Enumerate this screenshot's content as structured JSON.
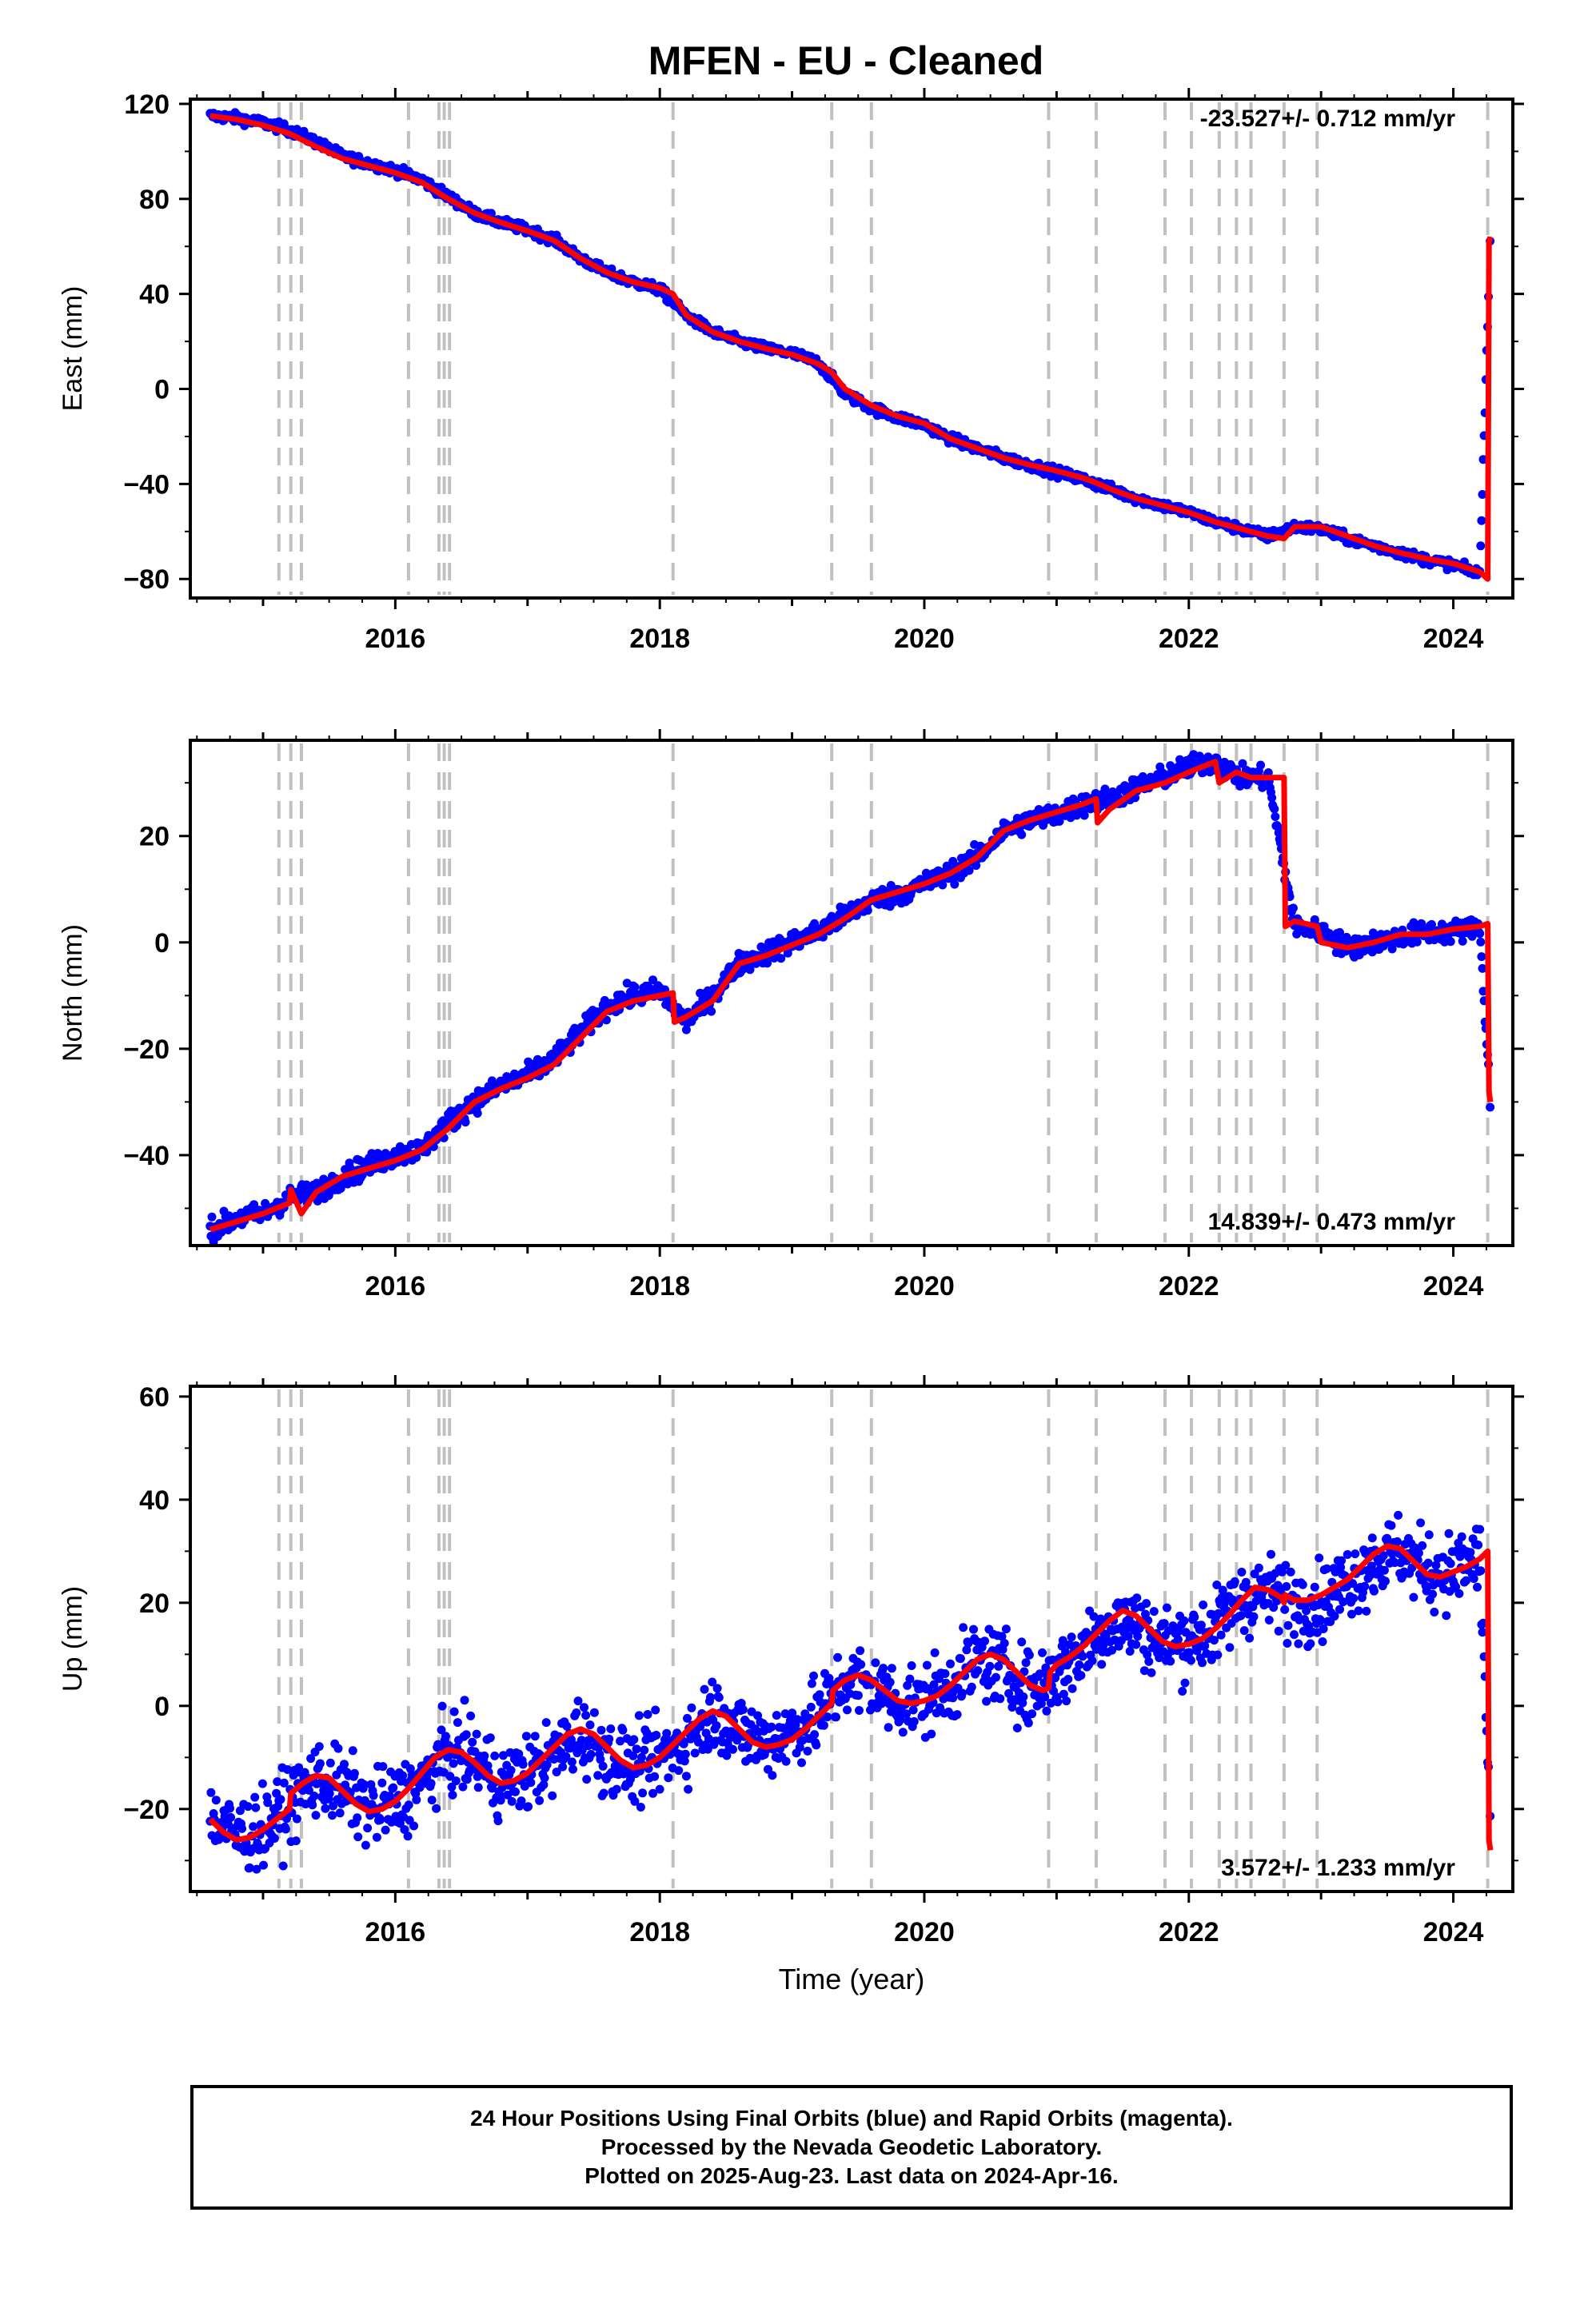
{
  "title": "MFEN  - EU - Cleaned",
  "footer": {
    "line1": "24 Hour Positions Using Final Orbits (blue) and Rapid Orbits (magenta).",
    "line2": "Processed by the Nevada Geodetic Laboratory.",
    "line3": "Plotted on 2025-Aug-23. Last data on 2024-Apr-16."
  },
  "colors": {
    "points": "#0000ff",
    "fit": "#ff0000",
    "steps": "#c0c0c0",
    "frame": "#000000"
  },
  "chart_data": [
    {
      "type": "scatter",
      "panel": "east",
      "ylabel": "East (mm)",
      "xlabel": "",
      "xlim": [
        2014.45,
        2024.45
      ],
      "ylim": [
        -88,
        122
      ],
      "yticks": [
        120,
        80,
        40,
        0,
        -40,
        -80
      ],
      "xticks": [
        2016,
        2018,
        2020,
        2022,
        2024
      ],
      "rate_label": "-23.527+/- 0.712 mm/yr",
      "rate_position": "top-right",
      "step_epochs": [
        2015.12,
        2015.21,
        2015.29,
        2016.1,
        2016.33,
        2016.37,
        2016.41,
        2018.1,
        2019.3,
        2019.6,
        2020.94,
        2021.3,
        2021.82,
        2022.02,
        2022.23,
        2022.36,
        2022.47,
        2022.72,
        2022.97,
        2024.26
      ],
      "series": [
        {
          "name": "24 Hour Positions",
          "kind": "points",
          "x": [
            2014.6,
            2014.8,
            2015.0,
            2015.2,
            2015.4,
            2015.6,
            2015.8,
            2016.0,
            2016.2,
            2016.4,
            2016.6,
            2016.8,
            2017.0,
            2017.2,
            2017.4,
            2017.6,
            2017.8,
            2018.0,
            2018.2,
            2018.4,
            2018.6,
            2018.8,
            2019.0,
            2019.2,
            2019.4,
            2019.6,
            2019.8,
            2020.0,
            2020.2,
            2020.4,
            2020.6,
            2020.8,
            2021.0,
            2021.2,
            2021.4,
            2021.6,
            2021.8,
            2022.0,
            2022.2,
            2022.4,
            2022.6,
            2022.8,
            2023.0,
            2023.2,
            2023.4,
            2023.6,
            2023.8,
            2024.0,
            2024.2,
            2024.28
          ],
          "y": [
            115,
            114,
            112,
            109,
            104,
            98,
            95,
            92,
            88,
            81,
            74,
            70,
            67,
            63,
            55,
            49,
            45,
            42,
            31,
            24,
            20,
            17,
            15,
            11,
            -2,
            -8,
            -12,
            -15,
            -21,
            -25,
            -29,
            -32,
            -35,
            -38,
            -42,
            -46,
            -49,
            -52,
            -56,
            -59,
            -62,
            -58,
            -59,
            -63,
            -66,
            -69,
            -72,
            -74,
            -78,
            64
          ]
        },
        {
          "name": "Model fit",
          "kind": "line",
          "x": [
            2014.6,
            2014.8,
            2015.0,
            2015.2,
            2015.4,
            2015.6,
            2015.8,
            2016.0,
            2016.2,
            2016.4,
            2016.6,
            2016.8,
            2017.0,
            2017.2,
            2017.4,
            2017.6,
            2017.8,
            2018.0,
            2018.1,
            2018.2,
            2018.4,
            2018.6,
            2018.8,
            2019.0,
            2019.2,
            2019.3,
            2019.4,
            2019.6,
            2019.8,
            2020.0,
            2020.2,
            2020.4,
            2020.6,
            2020.8,
            2021.0,
            2021.2,
            2021.3,
            2021.4,
            2021.6,
            2021.8,
            2022.0,
            2022.2,
            2022.4,
            2022.6,
            2022.72,
            2022.8,
            2023.0,
            2023.2,
            2023.4,
            2023.6,
            2023.8,
            2024.0,
            2024.2,
            2024.26,
            2024.27,
            2024.28
          ],
          "y": [
            115,
            113.5,
            111,
            107.5,
            102,
            97,
            94,
            91,
            87,
            80,
            74,
            70,
            66.5,
            62.5,
            55,
            49,
            45,
            42.5,
            40,
            31,
            24,
            20,
            17,
            14.5,
            10.5,
            7,
            0,
            -7,
            -11.5,
            -14.5,
            -21,
            -25,
            -29,
            -32,
            -34.5,
            -37.5,
            -39.5,
            -42,
            -46,
            -49,
            -52,
            -56,
            -59,
            -62,
            -63,
            -58,
            -58,
            -62,
            -66,
            -69,
            -71.5,
            -73.5,
            -77,
            -80,
            62,
            64
          ]
        }
      ]
    },
    {
      "type": "scatter",
      "panel": "north",
      "ylabel": "North (mm)",
      "xlabel": "",
      "xlim": [
        2014.45,
        2024.45
      ],
      "ylim": [
        -57,
        38
      ],
      "yticks": [
        20,
        0,
        -20,
        -40
      ],
      "xticks": [
        2016,
        2018,
        2020,
        2022,
        2024
      ],
      "rate_label": "14.839+/- 0.473 mm/yr",
      "rate_position": "bottom-right",
      "step_epochs": [
        2015.12,
        2015.21,
        2015.29,
        2016.1,
        2016.33,
        2016.37,
        2016.41,
        2018.1,
        2019.3,
        2019.6,
        2020.94,
        2021.3,
        2021.82,
        2022.02,
        2022.23,
        2022.36,
        2022.47,
        2022.72,
        2022.97,
        2024.26
      ],
      "series": [
        {
          "name": "24 Hour Positions",
          "kind": "points",
          "x": [
            2014.6,
            2014.8,
            2015.0,
            2015.2,
            2015.4,
            2015.6,
            2015.8,
            2016.0,
            2016.2,
            2016.4,
            2016.6,
            2016.8,
            2017.0,
            2017.2,
            2017.4,
            2017.6,
            2017.8,
            2018.0,
            2018.2,
            2018.4,
            2018.6,
            2018.8,
            2019.0,
            2019.2,
            2019.4,
            2019.6,
            2019.8,
            2020.0,
            2020.2,
            2020.4,
            2020.6,
            2020.8,
            2021.0,
            2021.2,
            2021.4,
            2021.6,
            2021.8,
            2022.0,
            2022.2,
            2022.4,
            2022.6,
            2022.8,
            2023.0,
            2023.2,
            2023.4,
            2023.6,
            2023.8,
            2024.0,
            2024.2,
            2024.28
          ],
          "y": [
            -54,
            -52,
            -51,
            -48,
            -47,
            -44,
            -42,
            -40,
            -39,
            -34,
            -30,
            -27,
            -25,
            -22,
            -17,
            -12,
            -10,
            -9,
            -15,
            -10,
            -4,
            -2,
            0,
            2,
            5,
            8,
            9,
            11,
            13,
            16,
            21,
            23,
            24,
            26,
            27,
            29,
            31,
            33,
            34,
            31,
            31,
            3,
            2,
            -1,
            0,
            1,
            2,
            2,
            3,
            -30
          ]
        },
        {
          "name": "Model fit",
          "kind": "line",
          "x": [
            2014.6,
            2014.8,
            2015.0,
            2015.2,
            2015.21,
            2015.29,
            2015.4,
            2015.6,
            2015.8,
            2016.0,
            2016.2,
            2016.4,
            2016.6,
            2016.8,
            2017.0,
            2017.2,
            2017.4,
            2017.6,
            2017.8,
            2018.0,
            2018.1,
            2018.11,
            2018.2,
            2018.4,
            2018.6,
            2018.8,
            2019.0,
            2019.2,
            2019.3,
            2019.4,
            2019.6,
            2019.8,
            2020.0,
            2020.2,
            2020.4,
            2020.6,
            2020.8,
            2021.0,
            2021.2,
            2021.3,
            2021.31,
            2021.4,
            2021.6,
            2021.82,
            2022.0,
            2022.2,
            2022.23,
            2022.36,
            2022.47,
            2022.6,
            2022.72,
            2022.73,
            2022.8,
            2022.97,
            2023.0,
            2023.2,
            2023.4,
            2023.6,
            2023.8,
            2024.0,
            2024.2,
            2024.26,
            2024.27,
            2024.28
          ],
          "y": [
            -54,
            -52.5,
            -51,
            -49,
            -46.5,
            -51,
            -47,
            -44,
            -42.5,
            -41,
            -39,
            -35,
            -30,
            -27.5,
            -25.5,
            -23,
            -18,
            -13,
            -11,
            -10,
            -9.5,
            -15,
            -14,
            -11,
            -4,
            -2.5,
            -0.5,
            1.5,
            3,
            4.5,
            8,
            9.5,
            11,
            13,
            16,
            21,
            23,
            24.5,
            26,
            27,
            22.5,
            25,
            28.5,
            30,
            32,
            34,
            30,
            32,
            31,
            31,
            31,
            3,
            4,
            3,
            0,
            -1,
            0,
            1.5,
            1.5,
            2.5,
            3,
            3.5,
            -28,
            -30
          ]
        }
      ]
    },
    {
      "type": "scatter",
      "panel": "up",
      "ylabel": "Up (mm)",
      "xlabel": "Time (year)",
      "xlim": [
        2014.45,
        2024.45
      ],
      "ylim": [
        -36,
        62
      ],
      "yticks": [
        60,
        40,
        20,
        0,
        -20
      ],
      "xticks": [
        2016,
        2018,
        2020,
        2022,
        2024
      ],
      "rate_label": "3.572+/- 1.233 mm/yr",
      "rate_position": "bottom-right",
      "step_epochs": [
        2015.12,
        2015.21,
        2015.29,
        2016.1,
        2016.33,
        2016.37,
        2016.41,
        2018.1,
        2019.3,
        2019.6,
        2020.94,
        2021.3,
        2021.82,
        2022.02,
        2022.23,
        2022.36,
        2022.47,
        2022.72,
        2022.97,
        2024.26
      ],
      "series": [
        {
          "name": "24 Hour Positions",
          "kind": "points",
          "x": [
            2014.6,
            2014.8,
            2015.0,
            2015.2,
            2015.4,
            2015.6,
            2015.8,
            2016.0,
            2016.2,
            2016.4,
            2016.6,
            2016.8,
            2017.0,
            2017.2,
            2017.4,
            2017.6,
            2017.8,
            2018.0,
            2018.2,
            2018.4,
            2018.6,
            2018.8,
            2019.0,
            2019.2,
            2019.4,
            2019.6,
            2019.8,
            2020.0,
            2020.2,
            2020.4,
            2020.6,
            2020.8,
            2021.0,
            2021.2,
            2021.4,
            2021.6,
            2021.8,
            2022.0,
            2022.2,
            2022.4,
            2022.6,
            2022.8,
            2023.0,
            2023.2,
            2023.4,
            2023.6,
            2023.8,
            2024.0,
            2024.2,
            2024.28
          ],
          "y": [
            -22,
            -25,
            -24,
            -19,
            -14,
            -16,
            -20,
            -19,
            -15,
            -9,
            -10,
            -15,
            -13,
            -10,
            -5,
            -10,
            -12,
            -10,
            -7,
            -1,
            -5,
            -7,
            -5,
            -2,
            5,
            4,
            1,
            1,
            4,
            9,
            7,
            3,
            6,
            11,
            16,
            16,
            12,
            13,
            15,
            21,
            22,
            20,
            20,
            24,
            28,
            30,
            26,
            26,
            29,
            -22
          ]
        },
        {
          "name": "Model fit",
          "kind": "line",
          "x": [
            2014.6,
            2014.7,
            2014.8,
            2014.9,
            2015.0,
            2015.1,
            2015.2,
            2015.21,
            2015.3,
            2015.4,
            2015.5,
            2015.6,
            2015.7,
            2015.8,
            2015.9,
            2016.0,
            2016.1,
            2016.2,
            2016.3,
            2016.4,
            2016.5,
            2016.6,
            2016.7,
            2016.8,
            2016.9,
            2017.0,
            2017.1,
            2017.2,
            2017.3,
            2017.4,
            2017.5,
            2017.6,
            2017.7,
            2017.8,
            2017.9,
            2018.0,
            2018.1,
            2018.2,
            2018.3,
            2018.4,
            2018.5,
            2018.6,
            2018.7,
            2018.8,
            2018.9,
            2019.0,
            2019.1,
            2019.2,
            2019.3,
            2019.31,
            2019.4,
            2019.5,
            2019.6,
            2019.7,
            2019.8,
            2019.9,
            2020.0,
            2020.1,
            2020.2,
            2020.3,
            2020.4,
            2020.5,
            2020.6,
            2020.7,
            2020.8,
            2020.9,
            2020.94,
            2020.95,
            2021.0,
            2021.1,
            2021.2,
            2021.3,
            2021.4,
            2021.5,
            2021.6,
            2021.7,
            2021.8,
            2021.9,
            2022.0,
            2022.1,
            2022.2,
            2022.3,
            2022.4,
            2022.5,
            2022.6,
            2022.7,
            2022.72,
            2022.73,
            2022.8,
            2022.9,
            2023.0,
            2023.1,
            2023.2,
            2023.3,
            2023.4,
            2023.5,
            2023.6,
            2023.7,
            2023.8,
            2023.9,
            2024.0,
            2024.1,
            2024.2,
            2024.26,
            2024.27,
            2024.28
          ],
          "y": [
            -22,
            -24.5,
            -26,
            -25.5,
            -24,
            -22,
            -20,
            -17,
            -15,
            -13.5,
            -14,
            -16.5,
            -19,
            -20.5,
            -20,
            -18.5,
            -16,
            -13,
            -10,
            -8.5,
            -9,
            -11,
            -13.5,
            -15,
            -14.5,
            -13,
            -10.5,
            -8,
            -5.5,
            -4.5,
            -5.5,
            -8,
            -10.5,
            -12,
            -11.5,
            -10,
            -7.5,
            -5,
            -2.5,
            -1,
            -2,
            -4.5,
            -7,
            -8,
            -7.5,
            -6.5,
            -4.5,
            -2,
            0.5,
            3,
            5,
            6,
            5,
            3,
            1,
            0.5,
            1,
            2,
            4,
            6.5,
            9,
            10,
            9,
            6.5,
            4,
            3,
            3.5,
            6.5,
            8,
            9.5,
            11.5,
            14,
            16.5,
            18.5,
            17.5,
            15,
            12.5,
            11.5,
            12,
            13,
            15,
            17.5,
            20.5,
            23,
            22.5,
            21,
            20,
            21.5,
            20.5,
            20.5,
            21.5,
            23,
            24.5,
            27,
            29.5,
            31,
            30.5,
            28,
            25.5,
            25,
            26,
            27,
            28.5,
            30,
            -26,
            -28
          ]
        }
      ]
    }
  ]
}
